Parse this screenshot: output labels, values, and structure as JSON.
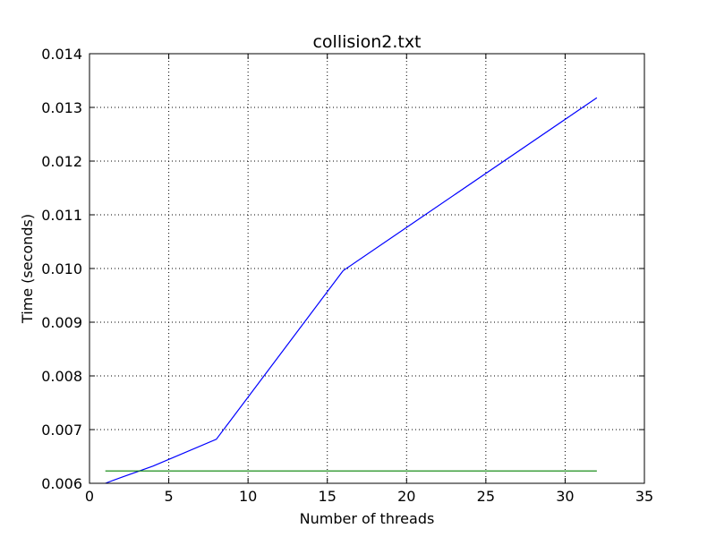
{
  "chart_data": {
    "type": "line",
    "title": "collision2.txt",
    "xlabel": "Number of threads",
    "ylabel": "Time (seconds)",
    "xlim": [
      0,
      35
    ],
    "ylim": [
      0.006,
      0.014
    ],
    "x_ticks": [
      0,
      5,
      10,
      15,
      20,
      25,
      30,
      35
    ],
    "y_ticks": [
      0.006,
      0.007,
      0.008,
      0.009,
      0.01,
      0.011,
      0.012,
      0.013,
      0.014
    ],
    "x_tick_labels": [
      "0",
      "5",
      "10",
      "15",
      "20",
      "25",
      "30",
      "35"
    ],
    "y_tick_labels": [
      "0.006",
      "0.007",
      "0.008",
      "0.009",
      "0.010",
      "0.011",
      "0.012",
      "0.013",
      "0.014"
    ],
    "grid": true,
    "legend": "none",
    "series": [
      {
        "color": "#0000ff",
        "x": [
          1,
          2,
          4,
          8,
          16,
          32
        ],
        "y": [
          0.006,
          0.00611,
          0.00632,
          0.00682,
          0.00996,
          0.01318
        ]
      },
      {
        "color": "#008000",
        "x": [
          1,
          32
        ],
        "y": [
          0.00623,
          0.00623
        ]
      }
    ]
  }
}
